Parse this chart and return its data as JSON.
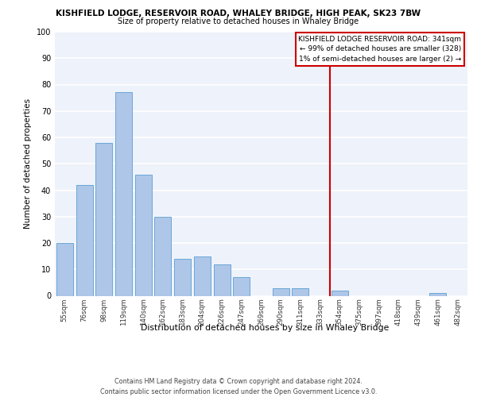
{
  "title": "KISHFIELD LODGE, RESERVOIR ROAD, WHALEY BRIDGE, HIGH PEAK, SK23 7BW",
  "subtitle": "Size of property relative to detached houses in Whaley Bridge",
  "xlabel": "Distribution of detached houses by size in Whaley Bridge",
  "ylabel": "Number of detached properties",
  "bar_labels": [
    "55sqm",
    "76sqm",
    "98sqm",
    "119sqm",
    "140sqm",
    "162sqm",
    "183sqm",
    "204sqm",
    "226sqm",
    "247sqm",
    "269sqm",
    "290sqm",
    "311sqm",
    "333sqm",
    "354sqm",
    "375sqm",
    "397sqm",
    "418sqm",
    "439sqm",
    "461sqm",
    "482sqm"
  ],
  "bar_values": [
    20,
    42,
    58,
    77,
    46,
    30,
    14,
    15,
    12,
    7,
    0,
    3,
    3,
    0,
    2,
    0,
    0,
    0,
    0,
    1,
    0
  ],
  "bar_color": "#aec6e8",
  "bar_edge_color": "#5a9fd4",
  "vline_color": "#cc0000",
  "annotation_text": "KISHFIELD LODGE RESERVOIR ROAD: 341sqm\n← 99% of detached houses are smaller (328)\n1% of semi-detached houses are larger (2) →",
  "footer_text": "Contains HM Land Registry data © Crown copyright and database right 2024.\nContains public sector information licensed under the Open Government Licence v3.0.",
  "ylim": [
    0,
    100
  ],
  "yticks": [
    0,
    10,
    20,
    30,
    40,
    50,
    60,
    70,
    80,
    90,
    100
  ],
  "bg_color": "#eef2fa",
  "grid_color": "#ffffff"
}
